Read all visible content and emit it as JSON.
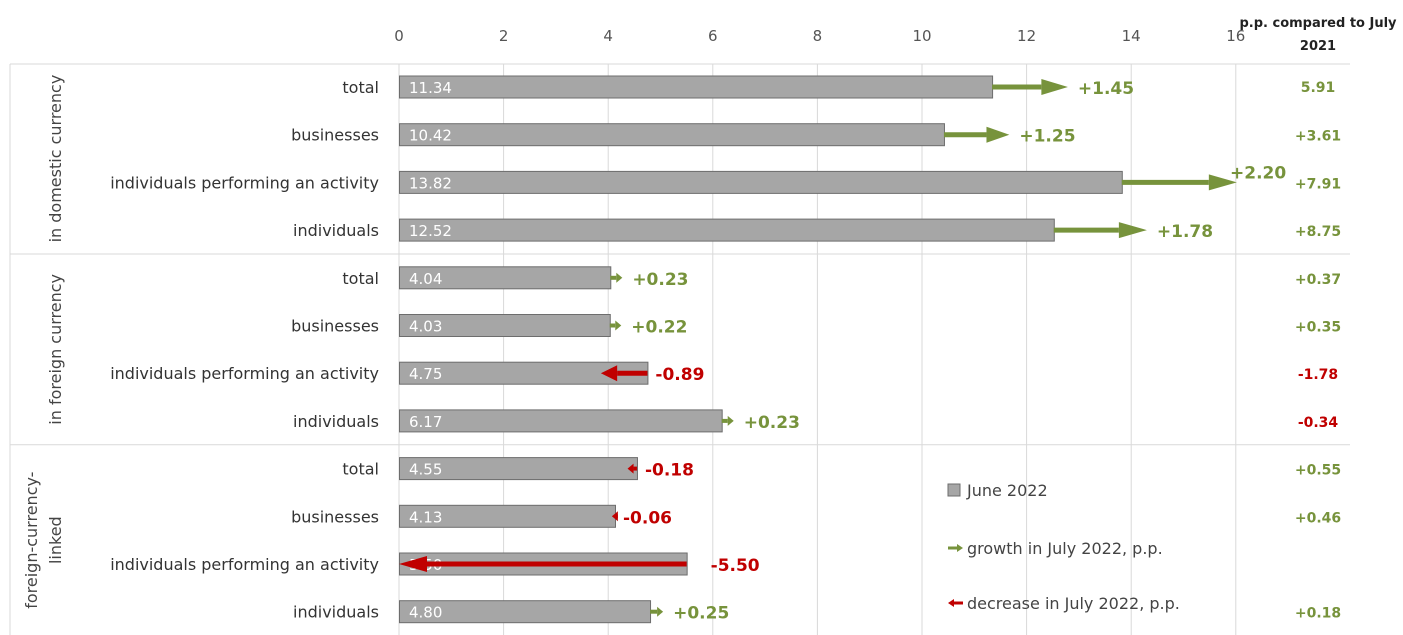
{
  "chart_data": {
    "type": "bar",
    "orientation": "horizontal",
    "xlim": [
      0,
      16
    ],
    "x_ticks": [
      "0",
      "2",
      "4",
      "6",
      "8",
      "10",
      "12",
      "14",
      "16"
    ],
    "grid": "vertical",
    "column_header": {
      "line1": "p.p. compared to July",
      "line2": "2021"
    },
    "legend": {
      "position": "bottom-right",
      "bar": "June 2022",
      "growth": "growth in July 2022, p.p.",
      "decrease": "decrease in July 2022, p.p."
    },
    "colors": {
      "bar": "#a6a6a6",
      "bar_border": "#6d6d6d",
      "growth": "#77933c",
      "decrease": "#c00000",
      "grid": "#d9d9d9"
    },
    "groups": [
      {
        "label_lines": [
          "in domestic currency"
        ],
        "rows": [
          {
            "category": "total",
            "value": 11.34,
            "value_label": "11.34",
            "change": 1.45,
            "change_label": "+1.45",
            "yoy": "5.91",
            "yoy_sign": "pos"
          },
          {
            "category": "businesses",
            "value": 10.42,
            "value_label": "10.42",
            "change": 1.25,
            "change_label": "+1.25",
            "yoy": "+3.61",
            "yoy_sign": "pos"
          },
          {
            "category": "individuals performing an activity",
            "value": 13.82,
            "value_label": "13.82",
            "change": 2.2,
            "change_label": "+2.20",
            "yoy": "+7.91",
            "yoy_sign": "pos"
          },
          {
            "category": "individuals",
            "value": 12.52,
            "value_label": "12.52",
            "change": 1.78,
            "change_label": "+1.78",
            "yoy": "+8.75",
            "yoy_sign": "pos"
          }
        ]
      },
      {
        "label_lines": [
          "in foreign currency"
        ],
        "rows": [
          {
            "category": "total",
            "value": 4.04,
            "value_label": "4.04",
            "change": 0.23,
            "change_label": "+0.23",
            "yoy": "+0.37",
            "yoy_sign": "pos"
          },
          {
            "category": "businesses",
            "value": 4.03,
            "value_label": "4.03",
            "change": 0.22,
            "change_label": "+0.22",
            "yoy": "+0.35",
            "yoy_sign": "pos"
          },
          {
            "category": "individuals performing an activity",
            "value": 4.75,
            "value_label": "4.75",
            "change": -0.89,
            "change_label": "-0.89",
            "yoy": "-1.78",
            "yoy_sign": "neg"
          },
          {
            "category": "individuals",
            "value": 6.17,
            "value_label": "6.17",
            "change": 0.23,
            "change_label": "+0.23",
            "yoy": "-0.34",
            "yoy_sign": "neg"
          }
        ]
      },
      {
        "label_lines": [
          "foreign-currency-",
          "linked"
        ],
        "rows": [
          {
            "category": "total",
            "value": 4.55,
            "value_label": "4.55",
            "change": -0.18,
            "change_label": "-0.18",
            "yoy": "+0.55",
            "yoy_sign": "pos"
          },
          {
            "category": "businesses",
            "value": 4.13,
            "value_label": "4.13",
            "change": -0.06,
            "change_label": "-0.06",
            "yoy": "+0.46",
            "yoy_sign": "pos"
          },
          {
            "category": "individuals performing an activity",
            "value": 5.5,
            "value_label": "5.50",
            "change": -5.5,
            "change_label": "-5.50",
            "yoy": "",
            "yoy_sign": "pos"
          },
          {
            "category": "individuals",
            "value": 4.8,
            "value_label": "4.80",
            "change": 0.25,
            "change_label": "+0.25",
            "yoy": "+0.18",
            "yoy_sign": "pos"
          }
        ]
      }
    ]
  }
}
